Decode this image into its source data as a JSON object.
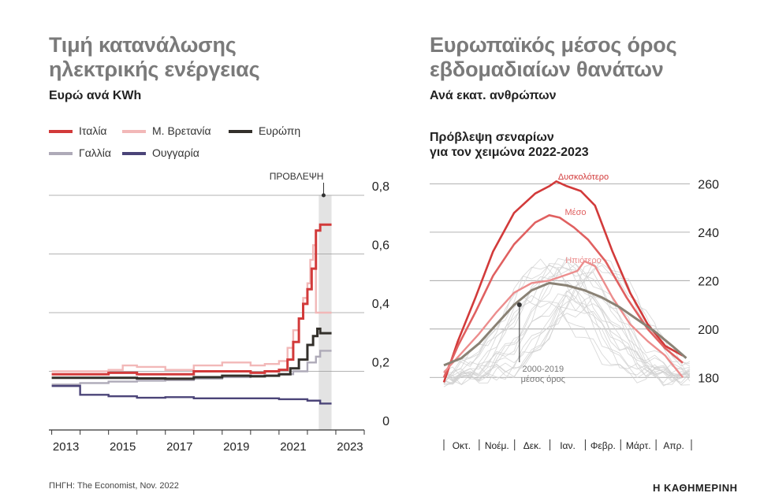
{
  "left_title": "Τιμή κατανάλωσης ηλεκτρικής ενέργειας",
  "left_title_lines": [
    "Τιμή κατανάλωσης",
    "ηλεκτρικής ενέργειας"
  ],
  "left_subtitle": "Ευρώ ανά KWh",
  "right_title_lines": [
    "Ευρωπαϊκός μέσος όρος",
    "εβδομαδιαίων θανάτων"
  ],
  "right_subtitle": "Ανά εκατ. ανθρώπων",
  "right_chart_heading_lines": [
    "Πρόβλεψη σεναρίων",
    "για τον χειμώνα 2022-2023"
  ],
  "source": "ΠΗΓΗ: The Economist, Nov. 2022",
  "logo": "Η ΚΑΘΗΜΕΡΙΝΗ",
  "colors": {
    "italy": "#d23a3a",
    "uk": "#f2b8b8",
    "europe": "#33302b",
    "france": "#aeaab8",
    "hungary": "#4b4478",
    "forecast_band": "#e3e3e3",
    "hard": "#d23a3a",
    "mid": "#e06060",
    "mild": "#ec8d8d",
    "avg": "#8a8275",
    "years": "#cfcfcf"
  },
  "chart_data": [
    {
      "type": "line",
      "title": "Τιμή κατανάλωσης ηλεκτρικής ενέργειας",
      "ylabel": "Ευρώ ανά KWh",
      "ylim": [
        0,
        0.8
      ],
      "yticks": [
        "0",
        "0,2",
        "0,4",
        "0,6",
        "0,8"
      ],
      "xticks": [
        "2013",
        "2015",
        "2017",
        "2019",
        "2021",
        "2023"
      ],
      "xlim": [
        2012.9,
        2024.0
      ],
      "forecast_label": "ΠΡΟΒΛΕΨΗ",
      "forecast_range": [
        2022.4,
        2022.85
      ],
      "series": [
        {
          "name": "Ιταλία",
          "color": "#d23a3a",
          "x": [
            2013,
            2014,
            2015,
            2016,
            2017,
            2018,
            2019,
            2020,
            2020.5,
            2021,
            2021.3,
            2021.5,
            2021.7,
            2021.85,
            2022,
            2022.15,
            2022.3,
            2022.45,
            2022.85
          ],
          "y": [
            0.19,
            0.19,
            0.195,
            0.19,
            0.19,
            0.2,
            0.2,
            0.195,
            0.2,
            0.205,
            0.24,
            0.3,
            0.38,
            0.43,
            0.48,
            0.55,
            0.68,
            0.7,
            0.7
          ]
        },
        {
          "name": "Μ. Βρετανία",
          "color": "#f2b8b8",
          "x": [
            2013,
            2014,
            2015,
            2015.5,
            2016,
            2017,
            2018,
            2019,
            2020,
            2020.5,
            2021,
            2021.3,
            2021.5,
            2021.7,
            2021.85,
            2022,
            2022.1,
            2022.2,
            2022.3,
            2022.45,
            2022.85
          ],
          "y": [
            0.2,
            0.2,
            0.205,
            0.22,
            0.215,
            0.205,
            0.22,
            0.23,
            0.22,
            0.225,
            0.235,
            0.28,
            0.34,
            0.38,
            0.45,
            0.5,
            0.58,
            0.63,
            0.4,
            0.4,
            0.4
          ]
        },
        {
          "name": "Ευρώπη",
          "color": "#33302b",
          "x": [
            2013,
            2014,
            2015,
            2016,
            2017,
            2018,
            2019,
            2020,
            2020.5,
            2021,
            2021.4,
            2021.7,
            2022,
            2022.2,
            2022.35,
            2022.45,
            2022.85
          ],
          "y": [
            0.178,
            0.178,
            0.178,
            0.176,
            0.175,
            0.18,
            0.185,
            0.183,
            0.185,
            0.19,
            0.21,
            0.24,
            0.29,
            0.32,
            0.345,
            0.33,
            0.33
          ]
        },
        {
          "name": "Γαλλία",
          "color": "#aeaab8",
          "x": [
            2013,
            2014,
            2015,
            2016,
            2017,
            2018,
            2019,
            2020,
            2021,
            2021.5,
            2022,
            2022.3,
            2022.45,
            2022.85
          ],
          "y": [
            0.155,
            0.16,
            0.165,
            0.168,
            0.17,
            0.175,
            0.18,
            0.185,
            0.19,
            0.2,
            0.23,
            0.25,
            0.27,
            0.27
          ]
        },
        {
          "name": "Ουγγαρία",
          "color": "#4b4478",
          "x": [
            2013,
            2013.7,
            2014,
            2015,
            2016,
            2017,
            2018,
            2019,
            2020,
            2021,
            2022,
            2022.45,
            2022.85
          ],
          "y": [
            0.15,
            0.15,
            0.12,
            0.115,
            0.11,
            0.112,
            0.108,
            0.108,
            0.108,
            0.105,
            0.1,
            0.09,
            0.09
          ]
        }
      ]
    },
    {
      "type": "line",
      "title": "Ευρωπαϊκός μέσος όρος εβδομαδιαίων θανάτων",
      "subtitle": "Πρόβλεψη σεναρίων για τον χειμώνα 2022-2023",
      "ylabel": "Ανά εκατ. ανθρώπων",
      "ylim": [
        170,
        265
      ],
      "yticks": [
        "180",
        "200",
        "220",
        "240",
        "260"
      ],
      "categories": [
        "Οκτ.",
        "Νοέμ.",
        "Δεκ.",
        "Ιαν.",
        "Φεβρ.",
        "Μάρτ.",
        "Απρ."
      ],
      "xlim": [
        0,
        7
      ],
      "series": [
        {
          "name": "Δυσκολότερο",
          "color": "#d23a3a",
          "x": [
            0.0,
            0.4,
            0.9,
            1.4,
            2.0,
            2.6,
            3.0,
            3.2,
            3.5,
            3.9,
            4.3,
            4.8,
            5.3,
            5.8,
            6.3,
            6.8
          ],
          "y": [
            178,
            195,
            213,
            232,
            248,
            256,
            259,
            261,
            259,
            257,
            251,
            232,
            215,
            202,
            193,
            189
          ]
        },
        {
          "name": "Μέσο",
          "color": "#e06060",
          "x": [
            0.0,
            0.4,
            0.9,
            1.4,
            2.0,
            2.6,
            3.0,
            3.3,
            3.7,
            4.1,
            4.6,
            5.2,
            5.8,
            6.3,
            6.8
          ],
          "y": [
            180,
            193,
            207,
            222,
            235,
            244,
            247,
            246,
            242,
            237,
            228,
            213,
            200,
            192,
            186
          ]
        },
        {
          "name": "Ηπιότερο",
          "color": "#ec8d8d",
          "x": [
            0.0,
            0.5,
            1.0,
            1.5,
            2.0,
            2.5,
            3.0,
            3.4,
            3.8,
            4.0,
            4.3,
            4.8,
            5.3,
            5.8,
            6.3,
            6.8
          ],
          "y": [
            182,
            190,
            198,
            207,
            215,
            219,
            220,
            222,
            224,
            228,
            226,
            213,
            202,
            195,
            189,
            180
          ]
        },
        {
          "name": "2000-2019 μέσος όρος",
          "color": "#8a8275",
          "x": [
            0.0,
            0.5,
            1.0,
            1.5,
            2.0,
            2.5,
            3.0,
            3.5,
            4.0,
            4.5,
            5.0,
            5.5,
            6.0,
            6.5,
            6.9
          ],
          "y": [
            185,
            188,
            194,
            202,
            210,
            216,
            219,
            218,
            216,
            213,
            209,
            204,
            199,
            193,
            188
          ]
        }
      ]
    }
  ]
}
